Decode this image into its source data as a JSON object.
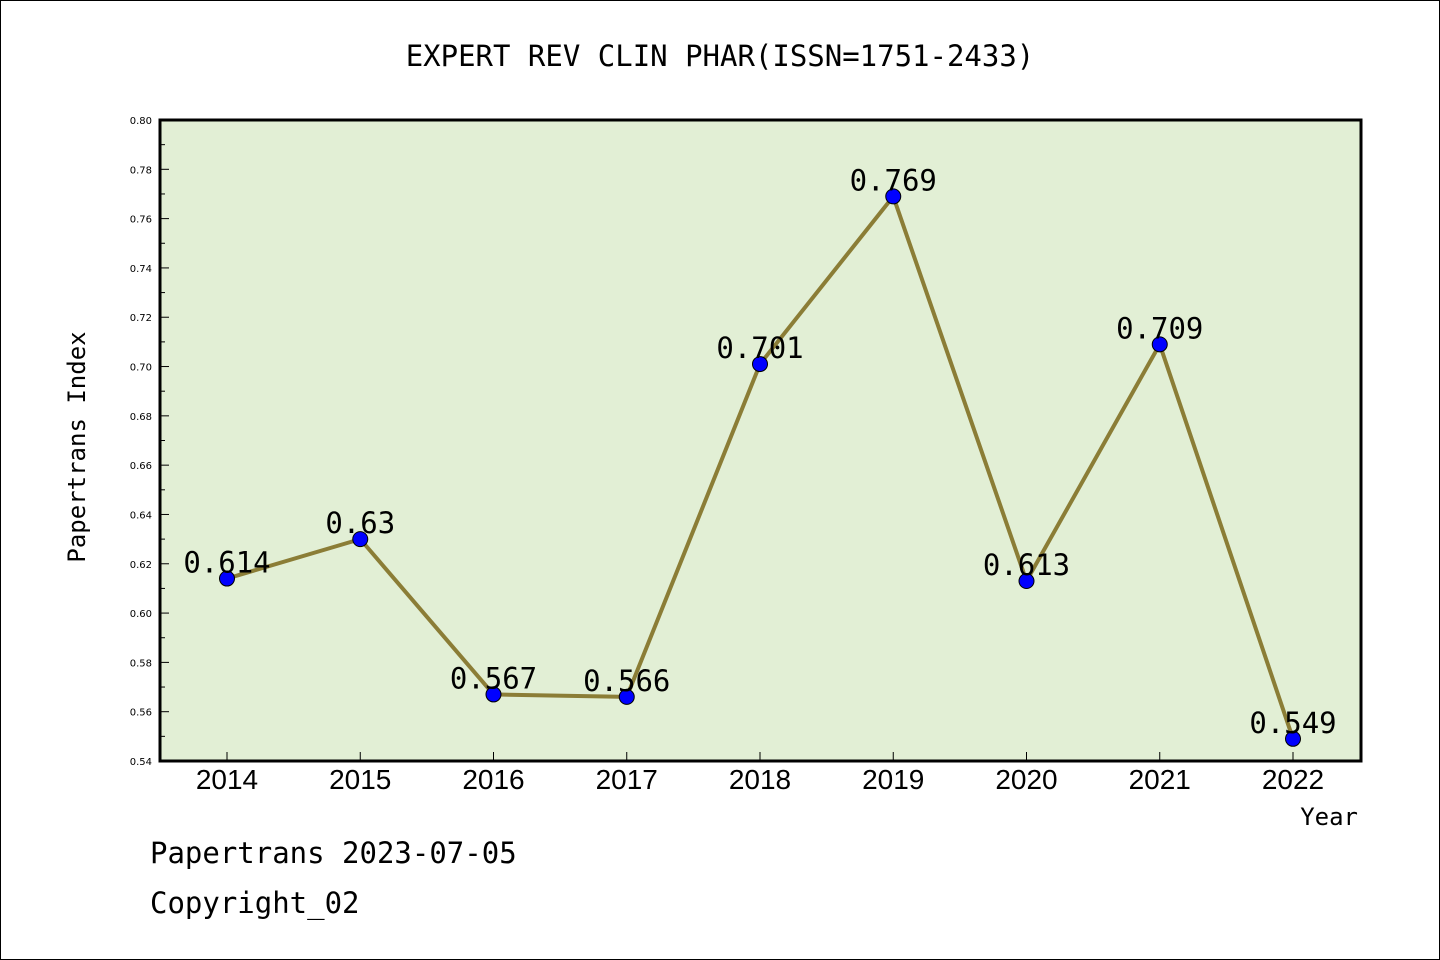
{
  "chart_data": {
    "type": "line",
    "title": "EXPERT REV CLIN PHAR(ISSN=1751-2433)",
    "xlabel": "Year",
    "ylabel": "Papertrans Index",
    "categories": [
      "2014",
      "2015",
      "2016",
      "2017",
      "2018",
      "2019",
      "2020",
      "2021",
      "2022"
    ],
    "values": [
      0.614,
      0.63,
      0.567,
      0.566,
      0.701,
      0.769,
      0.613,
      0.709,
      0.549
    ],
    "data_labels": [
      "0.614",
      "0.63",
      "0.567",
      "0.566",
      "0.701",
      "0.769",
      "0.613",
      "0.709",
      "0.549"
    ],
    "ylim": [
      0.54,
      0.8
    ],
    "yticks": [
      "0.54",
      "0.56",
      "0.58",
      "0.60",
      "0.62",
      "0.64",
      "0.66",
      "0.68",
      "0.70",
      "0.72",
      "0.74",
      "0.76",
      "0.78",
      "0.80"
    ],
    "grid": false,
    "colors": {
      "plot_background": "#e2efd5",
      "line": "#8b7d36",
      "marker": "#0000ff"
    }
  },
  "footer": {
    "date_line": "Papertrans 2023-07-05",
    "copyright_line": "Copyright_02"
  }
}
